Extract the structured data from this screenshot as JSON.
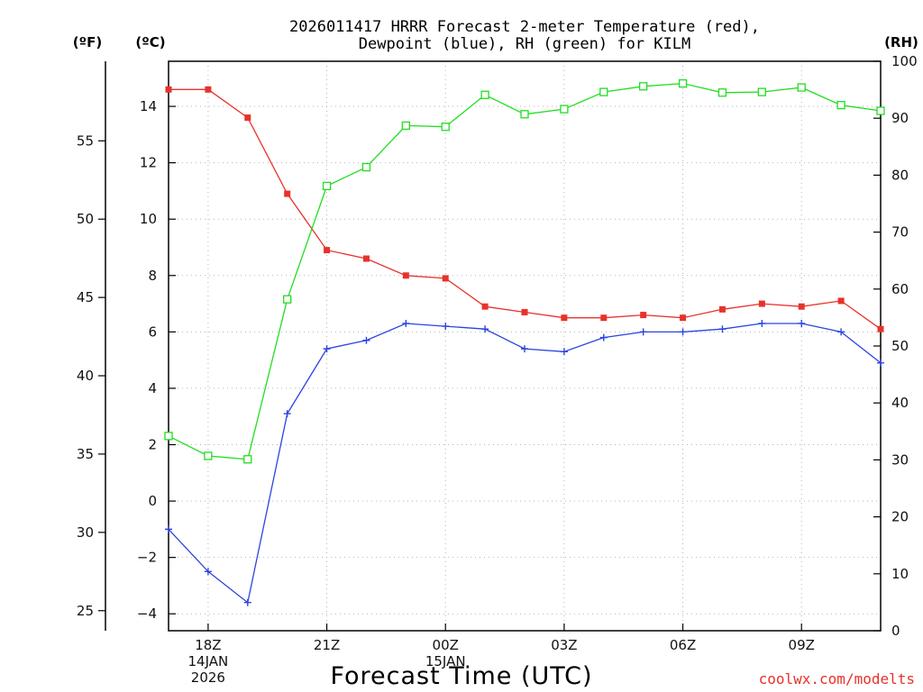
{
  "chart_data": {
    "type": "line",
    "title": [
      "2026011417 HRRR Forecast 2-meter Temperature (red),",
      "Dewpoint (blue), RH (green) for KILM"
    ],
    "xlabel": "Forecast Time (UTC)",
    "credit": "coolwx.com/modelts",
    "unit_labels": {
      "fahrenheit": "(ºF)",
      "celsius": "(ºC)",
      "rh": "(RH)"
    },
    "x_hours": [
      17,
      18,
      19,
      20,
      21,
      22,
      23,
      24,
      25,
      26,
      27,
      28,
      29,
      30,
      31,
      32,
      33,
      34,
      35
    ],
    "xlim": [
      17,
      35
    ],
    "x_ticks": [
      {
        "hour": 18,
        "lines": [
          "18Z",
          "14JAN",
          "2026"
        ]
      },
      {
        "hour": 21,
        "lines": [
          "21Z"
        ]
      },
      {
        "hour": 24,
        "lines": [
          "00Z",
          "15JAN"
        ]
      },
      {
        "hour": 27,
        "lines": [
          "03Z"
        ]
      },
      {
        "hour": 30,
        "lines": [
          "06Z"
        ]
      },
      {
        "hour": 33,
        "lines": [
          "09Z"
        ]
      }
    ],
    "celsius_axis": {
      "ylim": [
        -4.6,
        15.6
      ],
      "ticks": [
        -4,
        -2,
        0,
        2,
        4,
        6,
        8,
        10,
        12,
        14
      ],
      "tick_labels": [
        "−4",
        "−2",
        "0",
        "2",
        "4",
        "6",
        "8",
        "10",
        "12",
        "14"
      ]
    },
    "fahrenheit_axis": {
      "ticks": [
        25,
        30,
        35,
        40,
        45,
        50,
        55
      ]
    },
    "rh_axis": {
      "ylim": [
        0,
        100
      ],
      "ticks": [
        0,
        10,
        20,
        30,
        40,
        50,
        60,
        70,
        80,
        90,
        100
      ]
    },
    "series": [
      {
        "name": "Temperature",
        "color": "#e8322c",
        "marker": "filled-square",
        "axis": "celsius",
        "values": [
          14.6,
          14.6,
          13.6,
          10.9,
          8.9,
          8.6,
          8.0,
          7.9,
          6.9,
          6.7,
          6.5,
          6.5,
          6.6,
          6.5,
          6.8,
          7.0,
          6.9,
          7.1,
          6.1
        ]
      },
      {
        "name": "Dewpoint",
        "color": "#2c44e0",
        "marker": "plus",
        "axis": "celsius",
        "values": [
          -1.0,
          -2.5,
          -3.6,
          3.1,
          5.4,
          5.7,
          6.3,
          6.2,
          6.1,
          5.4,
          5.3,
          5.8,
          6.0,
          6.0,
          6.1,
          6.3,
          6.3,
          6.0,
          4.9
        ]
      },
      {
        "name": "RH",
        "color": "#22dd22",
        "marker": "open-square",
        "axis": "rh",
        "values": [
          34.2,
          30.7,
          30.1,
          58.2,
          78.1,
          81.4,
          88.7,
          88.5,
          94.1,
          90.7,
          91.6,
          94.6,
          95.6,
          96.1,
          94.5,
          94.6,
          95.4,
          92.3,
          91.3
        ]
      }
    ]
  }
}
